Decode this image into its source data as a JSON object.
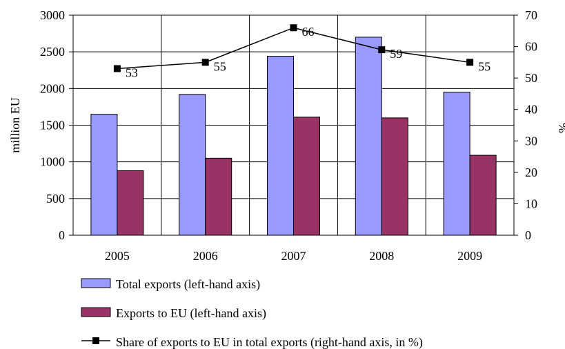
{
  "chart_data": {
    "type": "bar",
    "categories": [
      "2005",
      "2006",
      "2007",
      "2008",
      "2009"
    ],
    "series": [
      {
        "name": "Total exports (left-hand axis)",
        "type": "bar",
        "axis": "left",
        "color": "#9999ff",
        "values": [
          1650,
          1920,
          2440,
          2700,
          1950
        ]
      },
      {
        "name": "Exports to EU (left-hand axis)",
        "type": "bar",
        "axis": "left",
        "color": "#993366",
        "values": [
          880,
          1050,
          1610,
          1600,
          1090
        ]
      },
      {
        "name": "Share of exports to EU in total exports (right-hand axis, in %)",
        "type": "line",
        "axis": "right",
        "color": "#000000",
        "values": [
          53,
          55,
          66,
          59,
          55
        ],
        "labels": [
          "53",
          "55",
          "66",
          "59",
          "55"
        ]
      }
    ],
    "ylabel": "million EU",
    "ylabel_right": "%",
    "ylim": [
      0,
      3000
    ],
    "ylim_right": [
      0,
      70
    ],
    "yticks": [
      "0",
      "500",
      "1000",
      "1500",
      "2000",
      "2500",
      "3000"
    ],
    "yticks_right": [
      "0",
      "10",
      "20",
      "30",
      "40",
      "50",
      "60",
      "70"
    ],
    "grid": true,
    "legend": "bottom"
  }
}
